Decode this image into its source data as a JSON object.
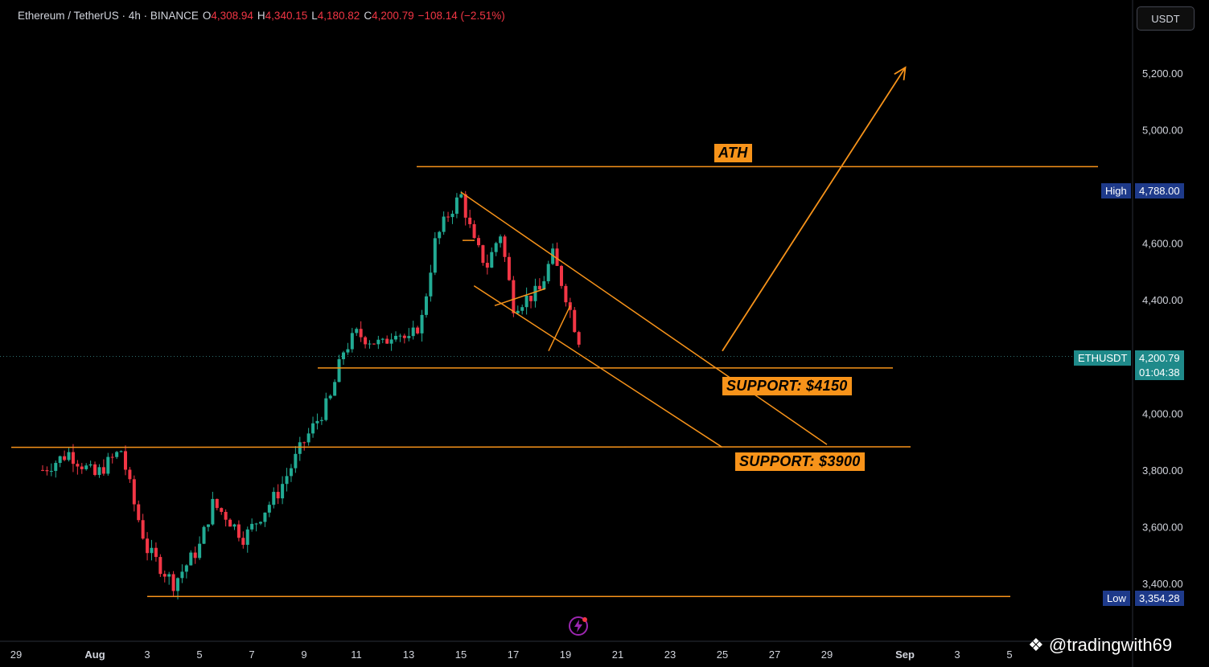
{
  "header": {
    "symbol_title": "Ethereum / TetherUS · 4h · BINANCE",
    "open_label": "O",
    "open": "4,308.94",
    "high_label": "H",
    "high": "4,340.15",
    "low_label": "L",
    "low": "4,180.82",
    "close_label": "C",
    "close": "4,200.79",
    "change": "−108.14 (−2.51%)",
    "currency": "USDT"
  },
  "price_tags": {
    "high_label": "High",
    "high_value": "4,788.00",
    "last_symbol": "ETHUSDT",
    "last_value": "4,200.79",
    "countdown": "01:04:38",
    "low_label": "Low",
    "low_value": "3,354.28"
  },
  "annotations": {
    "ath": "ATH",
    "support_1": "SUPPORT: $4150",
    "support_2": "SUPPORT: $3900"
  },
  "watermark": "@tradingwith69",
  "colors": {
    "up": "#22ab94",
    "down": "#f23645",
    "drawing": "#f7931a",
    "last_price_tag": "#1f8a8a",
    "high_low_tag": "#1e3a8a"
  },
  "chart_data": {
    "type": "candlestick",
    "symbol": "ETHUSDT",
    "interval": "4h",
    "exchange": "BINANCE",
    "y_axis": {
      "ticks": [
        5200,
        5000,
        4800,
        4600,
        4400,
        4200,
        4000,
        3800,
        3600,
        3400
      ],
      "tick_labels": [
        "5,200.00",
        "5,000.00",
        "",
        "4,600.00",
        "4,400.00",
        "",
        "4,000.00",
        "3,800.00",
        "3,600.00",
        "3,400.00"
      ],
      "range": [
        3220,
        5390
      ]
    },
    "x_axis": {
      "tick_labels": [
        "29",
        "Aug",
        "3",
        "5",
        "7",
        "9",
        "11",
        "13",
        "15",
        "17",
        "19",
        "21",
        "23",
        "25",
        "27",
        "29",
        "Sep",
        "3",
        "5"
      ],
      "range": [
        "Jul 29",
        "Sep 5"
      ]
    },
    "last_price": 4200.79,
    "high": 4788.0,
    "low": 3354.28,
    "close_path": [
      {
        "date": "Jul 29",
        "price": 3800
      },
      {
        "date": "Jul 30",
        "price": 3860
      },
      {
        "date": "Jul 31",
        "price": 3780
      },
      {
        "date": "Aug 1",
        "price": 3870
      },
      {
        "date": "Aug 1.5",
        "price": 3680
      },
      {
        "date": "Aug 2",
        "price": 3520
      },
      {
        "date": "Aug 3",
        "price": 3400
      },
      {
        "date": "Aug 4",
        "price": 3530
      },
      {
        "date": "Aug 4.5",
        "price": 3680
      },
      {
        "date": "Aug 5",
        "price": 3640
      },
      {
        "date": "Aug 5.7",
        "price": 3560
      },
      {
        "date": "Aug 6.5",
        "price": 3660
      },
      {
        "date": "Aug 7",
        "price": 3720
      },
      {
        "date": "Aug 8",
        "price": 3900
      },
      {
        "date": "Aug 9",
        "price": 4050
      },
      {
        "date": "Aug 9.5",
        "price": 4220
      },
      {
        "date": "Aug 10",
        "price": 4280
      },
      {
        "date": "Aug 11",
        "price": 4240
      },
      {
        "date": "Aug 11.5",
        "price": 4300
      },
      {
        "date": "Aug 12",
        "price": 4250
      },
      {
        "date": "Aug 12.5",
        "price": 4330
      },
      {
        "date": "Aug 13",
        "price": 4600
      },
      {
        "date": "Aug 13.5",
        "price": 4700
      },
      {
        "date": "Aug 14",
        "price": 4770
      },
      {
        "date": "Aug 14.5",
        "price": 4600
      },
      {
        "date": "Aug 15",
        "price": 4520
      },
      {
        "date": "Aug 15.5",
        "price": 4640
      },
      {
        "date": "Aug 16",
        "price": 4380
      },
      {
        "date": "Aug 17",
        "price": 4430
      },
      {
        "date": "Aug 17.5",
        "price": 4560
      },
      {
        "date": "Aug 18",
        "price": 4420
      },
      {
        "date": "Aug 18.5",
        "price": 4260
      },
      {
        "date": "Aug 19",
        "price": 4330
      },
      {
        "date": "Aug 19.5",
        "price": 4210
      }
    ],
    "drawings": [
      {
        "type": "hline",
        "label": "ATH",
        "price": 4870
      },
      {
        "type": "hline",
        "label": "SUPPORT: $4150",
        "price": 4160
      },
      {
        "type": "hline",
        "label": "SUPPORT: $3900",
        "price": 3880
      },
      {
        "type": "hline",
        "label": "Low",
        "price": 3354
      },
      {
        "type": "channel_upper",
        "from": {
          "date": "Aug 14",
          "price": 4780
        },
        "to": {
          "date": "Aug 28",
          "price": 3890
        }
      },
      {
        "type": "channel_lower",
        "from": {
          "date": "Aug 14.5",
          "price": 4450
        },
        "to": {
          "date": "Aug 24",
          "price": 3880
        }
      },
      {
        "type": "arrow",
        "from": {
          "date": "Aug 24",
          "price": 4220
        },
        "to": {
          "date": "Aug 31",
          "price": 5220
        }
      }
    ]
  }
}
